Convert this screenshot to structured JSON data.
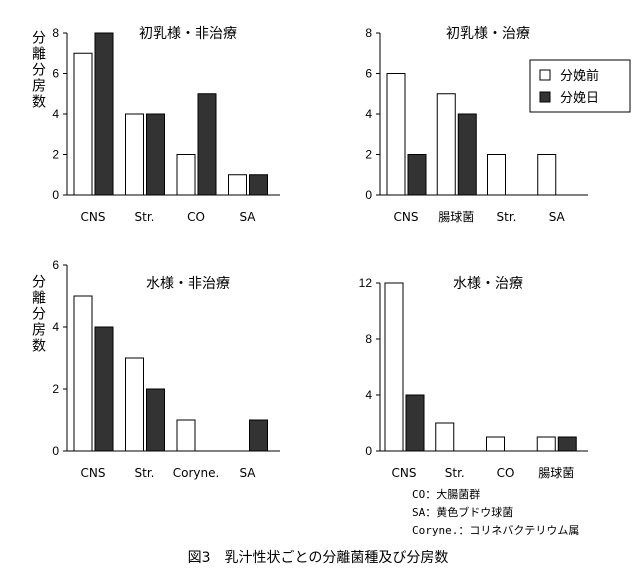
{
  "chart_data": [
    {
      "type": "bar",
      "title": "初乳様・非治療",
      "ylabel": "分離分房数",
      "categories": [
        "CNS",
        "Str.",
        "CO",
        "SA"
      ],
      "series": [
        {
          "name": "分娩前",
          "values": [
            7,
            4,
            2,
            1
          ]
        },
        {
          "name": "分娩日",
          "values": [
            8,
            4,
            5,
            1
          ]
        }
      ],
      "ylim": [
        0,
        8
      ],
      "yticks": [
        "0",
        "2",
        "4",
        "6",
        "8"
      ]
    },
    {
      "type": "bar",
      "title": "初乳様・治療",
      "ylabel": "",
      "categories": [
        "CNS",
        "腸球菌",
        "Str.",
        "SA"
      ],
      "series": [
        {
          "name": "分娩前",
          "values": [
            6,
            5,
            2,
            2
          ]
        },
        {
          "name": "分娩日",
          "values": [
            2,
            4,
            0,
            0
          ]
        }
      ],
      "ylim": [
        0,
        8
      ],
      "yticks": [
        "0",
        "2",
        "4",
        "6",
        "8"
      ],
      "legend": {
        "placement": "top-right",
        "entries": [
          "分娩前",
          "分娩日"
        ]
      }
    },
    {
      "type": "bar",
      "title": "水様・非治療",
      "ylabel": "分離分房数",
      "categories": [
        "CNS",
        "Str.",
        "Coryne.",
        "SA"
      ],
      "series": [
        {
          "name": "分娩前",
          "values": [
            5,
            3,
            1,
            0
          ]
        },
        {
          "name": "分娩日",
          "values": [
            4,
            2,
            0,
            1
          ]
        }
      ],
      "ylim": [
        0,
        6
      ],
      "yticks": [
        "0",
        "2",
        "4",
        "6"
      ]
    },
    {
      "type": "bar",
      "title": "水様・治療",
      "ylabel": "",
      "categories": [
        "CNS",
        "Str.",
        "CO",
        "腸球菌"
      ],
      "series": [
        {
          "name": "分娩前",
          "values": [
            12,
            2,
            1,
            1
          ]
        },
        {
          "name": "分娩日",
          "values": [
            4,
            0,
            0,
            1
          ]
        }
      ],
      "ylim": [
        0,
        12
      ],
      "yticks": [
        "0",
        "4",
        "8",
        "12"
      ]
    }
  ],
  "notes": [
    "CO：大腸菌群",
    "SA：黄色ブドウ球菌",
    "Coryne.：コリネバクテリウム属"
  ],
  "caption": "図3　乳汁性状ごとの分離菌種及び分房数",
  "colors": {
    "before": "#ffffff",
    "after": "#333333",
    "stroke": "#000000"
  }
}
